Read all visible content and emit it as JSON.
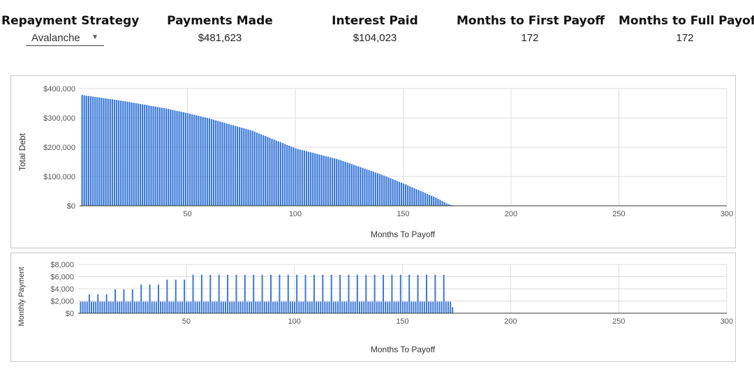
{
  "header": {
    "strategy": {
      "label": "Repayment Strategy",
      "selected": "Avalanche"
    },
    "payments_made": {
      "label": "Payments Made",
      "value": "$481,623"
    },
    "interest_paid": {
      "label": "Interest Paid",
      "value": "$104,023"
    },
    "first_payoff": {
      "label": "Months to First Payoff",
      "value": "172"
    },
    "full_payoff": {
      "label": "Months to Full Payoff",
      "value": "172"
    }
  },
  "icons": {
    "dropdown": "caret-down-icon"
  },
  "colors": {
    "bar": "#3a78d8",
    "grid": "#dddddd",
    "axis": "#333333"
  },
  "chart_data": [
    {
      "type": "bar",
      "xlabel": "Months To Payoff",
      "ylabel": "Total Debt",
      "xlim": [
        0,
        300
      ],
      "ylim": [
        0,
        400000
      ],
      "xticks": [
        "50",
        "100",
        "150",
        "200",
        "250",
        "300"
      ],
      "yticks": [
        "$0",
        "$100,000",
        "$200,000",
        "$300,000",
        "$400,000"
      ],
      "grid": true,
      "points": [
        [
          1,
          378000
        ],
        [
          20,
          358000
        ],
        [
          40,
          332000
        ],
        [
          50,
          316000
        ],
        [
          60,
          298000
        ],
        [
          80,
          256000
        ],
        [
          100,
          196000
        ],
        [
          120,
          158000
        ],
        [
          140,
          106000
        ],
        [
          150,
          76000
        ],
        [
          160,
          44000
        ],
        [
          165,
          28000
        ],
        [
          170,
          8000
        ],
        [
          173,
          0
        ]
      ]
    },
    {
      "type": "bar",
      "xlabel": "Months To Payoff",
      "ylabel": "Monthly Payment",
      "xlim": [
        0,
        300
      ],
      "ylim": [
        0,
        8000
      ],
      "xticks": [
        "50",
        "100",
        "150",
        "200",
        "250",
        "300"
      ],
      "yticks": [
        "$0",
        "$2,000",
        "$4,000",
        "$6,000",
        "$8,000"
      ],
      "grid": true,
      "base_payment": 1900,
      "spikes": [
        [
          5,
          3100
        ],
        [
          9,
          3100
        ],
        [
          13,
          3100
        ],
        [
          17,
          3900
        ],
        [
          21,
          3900
        ],
        [
          25,
          3900
        ],
        [
          29,
          4700
        ],
        [
          33,
          4700
        ],
        [
          37,
          4700
        ],
        [
          41,
          5500
        ],
        [
          45,
          5500
        ],
        [
          49,
          5500
        ],
        [
          53,
          6300
        ],
        [
          57,
          6300
        ],
        [
          61,
          6300
        ],
        [
          65,
          6300
        ],
        [
          69,
          6300
        ],
        [
          73,
          6300
        ],
        [
          77,
          6300
        ],
        [
          81,
          6300
        ],
        [
          85,
          6300
        ],
        [
          89,
          6300
        ],
        [
          93,
          6300
        ],
        [
          97,
          6300
        ],
        [
          101,
          6300
        ],
        [
          105,
          6300
        ],
        [
          109,
          6300
        ],
        [
          113,
          6300
        ],
        [
          117,
          6300
        ],
        [
          121,
          6300
        ],
        [
          125,
          6300
        ],
        [
          129,
          6300
        ],
        [
          133,
          6300
        ],
        [
          137,
          6300
        ],
        [
          141,
          6300
        ],
        [
          145,
          6300
        ],
        [
          149,
          6300
        ],
        [
          153,
          6300
        ],
        [
          157,
          6300
        ],
        [
          161,
          6300
        ],
        [
          165,
          6300
        ],
        [
          169,
          6300
        ]
      ],
      "last_month": 173,
      "last_payment": 1000
    }
  ]
}
